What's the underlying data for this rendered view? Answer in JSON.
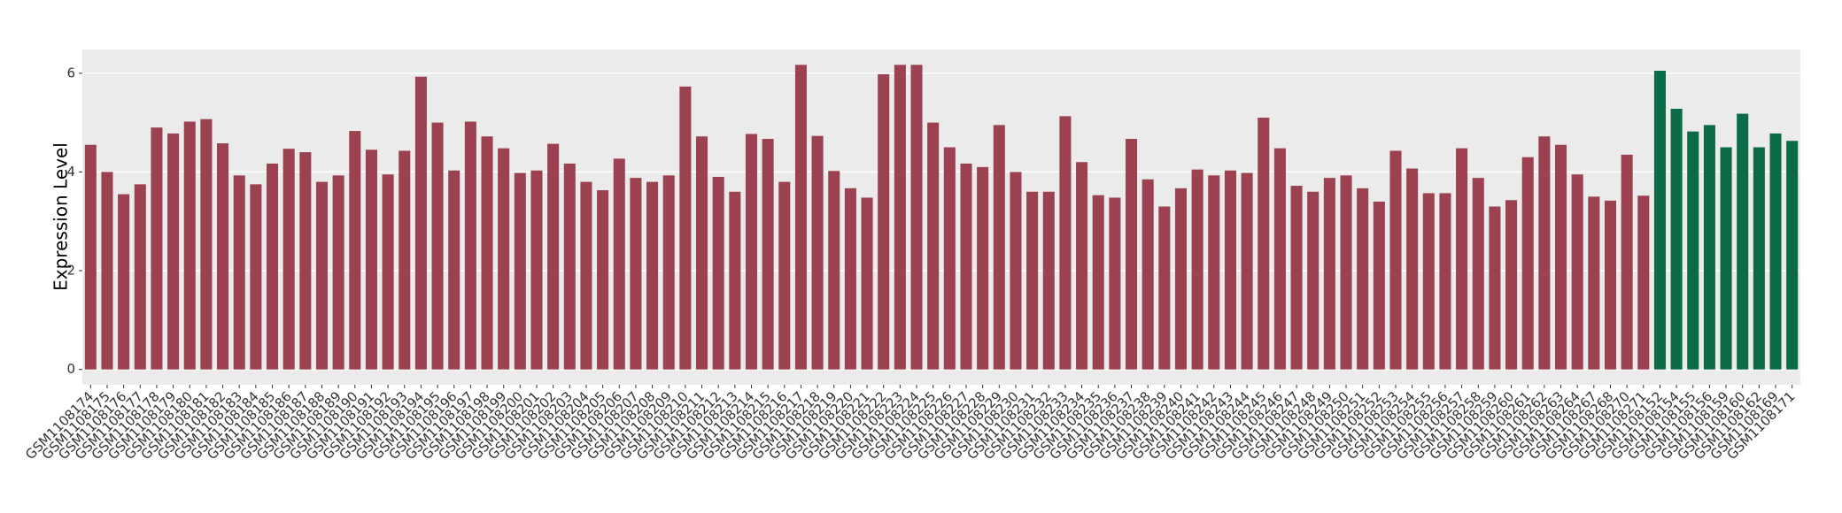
{
  "chart_data": {
    "type": "bar",
    "y_label": "Expression Level",
    "categories": [
      "GSM1108174",
      "GSM1108175",
      "GSM1108176",
      "GSM1108177",
      "GSM1108178",
      "GSM1108179",
      "GSM1108180",
      "GSM1108181",
      "GSM1108182",
      "GSM1108183",
      "GSM1108184",
      "GSM1108185",
      "GSM1108186",
      "GSM1108187",
      "GSM1108188",
      "GSM1108189",
      "GSM1108190",
      "GSM1108191",
      "GSM1108192",
      "GSM1108193",
      "GSM1108194",
      "GSM1108195",
      "GSM1108196",
      "GSM1108197",
      "GSM1108198",
      "GSM1108199",
      "GSM1108200",
      "GSM1108201",
      "GSM1108202",
      "GSM1108203",
      "GSM1108204",
      "GSM1108205",
      "GSM1108206",
      "GSM1108207",
      "GSM1108208",
      "GSM1108209",
      "GSM1108210",
      "GSM1108211",
      "GSM1108212",
      "GSM1108213",
      "GSM1108214",
      "GSM1108215",
      "GSM1108216",
      "GSM1108217",
      "GSM1108218",
      "GSM1108219",
      "GSM1108220",
      "GSM1108221",
      "GSM1108222",
      "GSM1108223",
      "GSM1108224",
      "GSM1108225",
      "GSM1108226",
      "GSM1108227",
      "GSM1108228",
      "GSM1108229",
      "GSM1108230",
      "GSM1108231",
      "GSM1108232",
      "GSM1108233",
      "GSM1108234",
      "GSM1108235",
      "GSM1108236",
      "GSM1108237",
      "GSM1108238",
      "GSM1108239",
      "GSM1108240",
      "GSM1108241",
      "GSM1108242",
      "GSM1108243",
      "GSM1108244",
      "GSM1108245",
      "GSM1108246",
      "GSM1108247",
      "GSM1108248",
      "GSM1108249",
      "GSM1108250",
      "GSM1108251",
      "GSM1108252",
      "GSM1108253",
      "GSM1108254",
      "GSM1108255",
      "GSM1108256",
      "GSM1108257",
      "GSM1108258",
      "GSM1108259",
      "GSM1108260",
      "GSM1108261",
      "GSM1108262",
      "GSM1108263",
      "GSM1108264",
      "GSM1108267",
      "GSM1108268",
      "GSM1108270",
      "GSM1108271",
      "GSM1108152",
      "GSM1108154",
      "GSM1108155",
      "GSM1108156",
      "GSM1108159",
      "GSM1108160",
      "GSM1108162",
      "GSM1108169",
      "GSM1108171"
    ],
    "values": [
      4.55,
      4.0,
      3.55,
      3.75,
      4.9,
      4.78,
      5.02,
      5.07,
      4.58,
      3.93,
      3.75,
      4.17,
      4.47,
      4.4,
      3.8,
      3.93,
      4.83,
      4.45,
      3.95,
      4.43,
      5.93,
      5.0,
      4.03,
      5.02,
      4.72,
      4.48,
      3.98,
      4.03,
      4.57,
      4.17,
      3.8,
      3.63,
      4.27,
      3.88,
      3.8,
      3.93,
      5.73,
      4.72,
      3.9,
      3.6,
      4.77,
      4.67,
      3.8,
      6.17,
      4.73,
      4.02,
      3.67,
      3.48,
      5.98,
      6.17,
      6.17,
      5.0,
      4.5,
      4.17,
      4.1,
      4.95,
      4.0,
      3.6,
      3.6,
      5.13,
      4.2,
      3.53,
      3.48,
      4.67,
      3.85,
      3.3,
      3.67,
      4.05,
      3.93,
      4.03,
      3.98,
      5.1,
      4.48,
      3.72,
      3.6,
      3.88,
      3.93,
      3.67,
      3.4,
      4.43,
      4.07,
      3.57,
      3.57,
      4.48,
      3.88,
      3.3,
      3.43,
      4.3,
      4.72,
      4.55,
      3.95,
      3.5,
      3.42,
      4.35,
      3.52,
      6.05,
      5.28,
      4.82,
      4.95,
      4.5,
      5.18,
      4.5,
      4.78,
      4.63
    ],
    "colors": [
      "#9b4150",
      "#9b4150",
      "#9b4150",
      "#9b4150",
      "#9b4150",
      "#9b4150",
      "#9b4150",
      "#9b4150",
      "#9b4150",
      "#9b4150",
      "#9b4150",
      "#9b4150",
      "#9b4150",
      "#9b4150",
      "#9b4150",
      "#9b4150",
      "#9b4150",
      "#9b4150",
      "#9b4150",
      "#9b4150",
      "#9b4150",
      "#9b4150",
      "#9b4150",
      "#9b4150",
      "#9b4150",
      "#9b4150",
      "#9b4150",
      "#9b4150",
      "#9b4150",
      "#9b4150",
      "#9b4150",
      "#9b4150",
      "#9b4150",
      "#9b4150",
      "#9b4150",
      "#9b4150",
      "#9b4150",
      "#9b4150",
      "#9b4150",
      "#9b4150",
      "#9b4150",
      "#9b4150",
      "#9b4150",
      "#9b4150",
      "#9b4150",
      "#9b4150",
      "#9b4150",
      "#9b4150",
      "#9b4150",
      "#9b4150",
      "#9b4150",
      "#9b4150",
      "#9b4150",
      "#9b4150",
      "#9b4150",
      "#9b4150",
      "#9b4150",
      "#9b4150",
      "#9b4150",
      "#9b4150",
      "#9b4150",
      "#9b4150",
      "#9b4150",
      "#9b4150",
      "#9b4150",
      "#9b4150",
      "#9b4150",
      "#9b4150",
      "#9b4150",
      "#9b4150",
      "#9b4150",
      "#9b4150",
      "#9b4150",
      "#9b4150",
      "#9b4150",
      "#9b4150",
      "#9b4150",
      "#9b4150",
      "#9b4150",
      "#9b4150",
      "#9b4150",
      "#9b4150",
      "#9b4150",
      "#9b4150",
      "#9b4150",
      "#9b4150",
      "#9b4150",
      "#9b4150",
      "#9b4150",
      "#9b4150",
      "#9b4150",
      "#9b4150",
      "#9b4150",
      "#9b4150",
      "#9b4150",
      "#0b6b47",
      "#0b6b47",
      "#0b6b47",
      "#0b6b47",
      "#0b6b47",
      "#0b6b47",
      "#0b6b47",
      "#0b6b47",
      "#0b6b47"
    ],
    "ylim": [
      -0.31,
      6.48
    ],
    "yticks": [
      0,
      2,
      4,
      6
    ],
    "grid": true
  }
}
